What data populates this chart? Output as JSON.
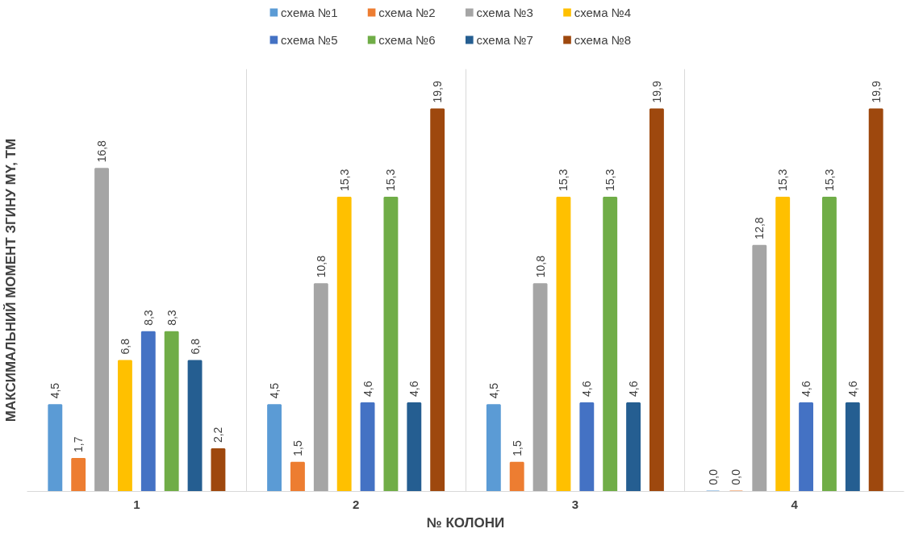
{
  "chart_data": {
    "type": "bar",
    "xlabel": "№ КОЛОНИ",
    "ylabel": "МАКСИМАЛЬНИЙ МОМЕНТ ЗГИНУ МY, ТМ",
    "categories": [
      "1",
      "2",
      "3",
      "4"
    ],
    "ylim": [
      0,
      22
    ],
    "tick_labels": "x",
    "grid": "x",
    "legend": "top",
    "series": [
      {
        "name": "схема №1",
        "color": "#5b9bd5",
        "values": [
          4.5,
          4.5,
          4.5,
          0.0
        ],
        "value_labels": [
          "4,5",
          "4,5",
          "4,5",
          "0,0"
        ]
      },
      {
        "name": "схема №2",
        "color": "#ed7d31",
        "values": [
          1.7,
          1.5,
          1.5,
          0.0
        ],
        "value_labels": [
          "1,7",
          "1,5",
          "1,5",
          "0,0"
        ]
      },
      {
        "name": "схема №3",
        "color": "#a5a5a5",
        "values": [
          16.8,
          10.8,
          10.8,
          12.8
        ],
        "value_labels": [
          "16,8",
          "10,8",
          "10,8",
          "12,8"
        ]
      },
      {
        "name": "схема №4",
        "color": "#ffc000",
        "values": [
          6.8,
          15.3,
          15.3,
          15.3
        ],
        "value_labels": [
          "6,8",
          "15,3",
          "15,3",
          "15,3"
        ]
      },
      {
        "name": "схема №5",
        "color": "#4472c4",
        "values": [
          8.3,
          4.6,
          4.6,
          4.6
        ],
        "value_labels": [
          "8,3",
          "4,6",
          "4,6",
          "4,6"
        ]
      },
      {
        "name": "схема №6",
        "color": "#70ad47",
        "values": [
          8.3,
          15.3,
          15.3,
          15.3
        ],
        "value_labels": [
          "8,3",
          "15,3",
          "15,3",
          "15,3"
        ]
      },
      {
        "name": "схема №7",
        "color": "#255e91",
        "values": [
          6.8,
          4.6,
          4.6,
          4.6
        ],
        "value_labels": [
          "6,8",
          "4,6",
          "4,6",
          "4,6"
        ]
      },
      {
        "name": "схема №8",
        "color": "#9e480e",
        "values": [
          2.2,
          19.9,
          19.9,
          19.9
        ],
        "value_labels": [
          "2,2",
          "19,9",
          "19,9",
          "19,9"
        ]
      }
    ]
  }
}
